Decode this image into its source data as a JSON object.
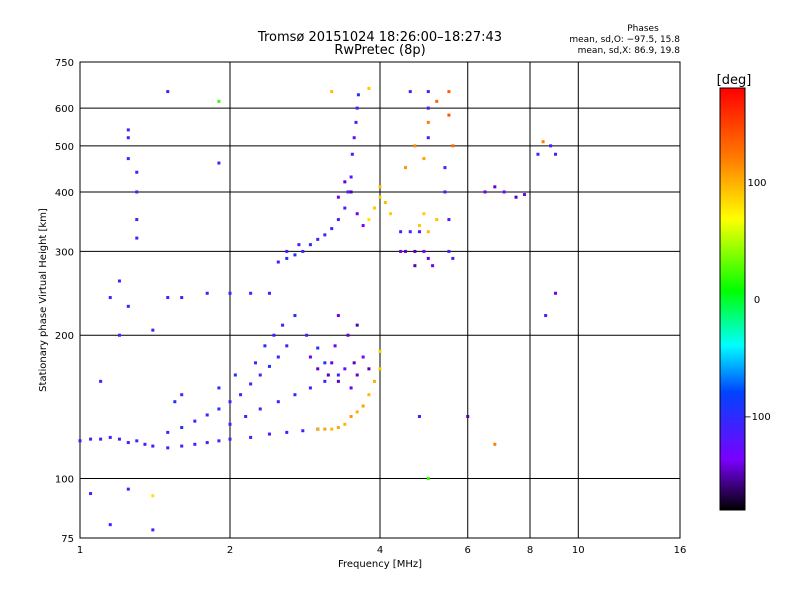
{
  "chart_data": {
    "type": "scatter",
    "title": "Tromsø 20151024 18:26:00–18:27:43",
    "subtitle": "RwPretec (8p)",
    "phases": {
      "title": "Phases",
      "line1": "mean, sd,O: −97.5, 15.8",
      "line2": "mean, sd,X:  86.9, 19.8"
    },
    "xlabel": "Frequency [MHz]",
    "ylabel": "Stationary phase Virtual Height [km]",
    "xscale": "log",
    "yscale": "log",
    "xlim": [
      1,
      16
    ],
    "ylim": [
      75,
      750
    ],
    "xticks": [
      1,
      2,
      4,
      6,
      8,
      10,
      16
    ],
    "yticks": [
      75,
      100,
      200,
      300,
      400,
      500,
      600,
      750
    ],
    "grid": true,
    "colorbar": {
      "label": "[deg]",
      "range": [
        -180,
        180
      ],
      "ticks": [
        100,
        0,
        -100
      ]
    },
    "points": [
      [
        1.0,
        120,
        -110
      ],
      [
        1.05,
        121,
        -108
      ],
      [
        1.1,
        121,
        -112
      ],
      [
        1.15,
        122,
        -105
      ],
      [
        1.2,
        121,
        -110
      ],
      [
        1.25,
        119,
        -115
      ],
      [
        1.3,
        120,
        -100
      ],
      [
        1.35,
        118,
        -112
      ],
      [
        1.4,
        117,
        -108
      ],
      [
        1.5,
        116,
        -110
      ],
      [
        1.6,
        117,
        -105
      ],
      [
        1.7,
        118,
        -108
      ],
      [
        1.8,
        119,
        -112
      ],
      [
        1.9,
        120,
        -110
      ],
      [
        2.0,
        121,
        -115
      ],
      [
        2.2,
        122,
        -112
      ],
      [
        2.4,
        124,
        -118
      ],
      [
        2.6,
        125,
        -120
      ],
      [
        2.8,
        126,
        -115
      ],
      [
        3.0,
        127,
        -118
      ],
      [
        1.5,
        125,
        -100
      ],
      [
        1.6,
        128,
        -95
      ],
      [
        1.7,
        132,
        -105
      ],
      [
        1.8,
        136,
        -110
      ],
      [
        1.9,
        140,
        -100
      ],
      [
        2.0,
        145,
        -105
      ],
      [
        2.1,
        150,
        -110
      ],
      [
        2.2,
        158,
        -100
      ],
      [
        2.3,
        165,
        -105
      ],
      [
        2.4,
        172,
        -98
      ],
      [
        2.5,
        180,
        -102
      ],
      [
        2.6,
        190,
        -108
      ],
      [
        1.9,
        155,
        -100
      ],
      [
        2.05,
        165,
        -95
      ],
      [
        2.25,
        175,
        -105
      ],
      [
        2.35,
        190,
        -100
      ],
      [
        2.45,
        200,
        -110
      ],
      [
        2.55,
        210,
        -105
      ],
      [
        2.7,
        220,
        -100
      ],
      [
        2.85,
        200,
        -108
      ],
      [
        3.0,
        188,
        -95
      ],
      [
        3.1,
        175,
        -100
      ],
      [
        2.0,
        130,
        -110
      ],
      [
        2.15,
        135,
        -112
      ],
      [
        2.3,
        140,
        -108
      ],
      [
        2.5,
        145,
        -104
      ],
      [
        2.7,
        150,
        -100
      ],
      [
        2.9,
        155,
        -106
      ],
      [
        3.1,
        160,
        -102
      ],
      [
        3.3,
        165,
        -110
      ],
      [
        2.9,
        180,
        -140
      ],
      [
        3.0,
        170,
        -145
      ],
      [
        3.15,
        165,
        -150
      ],
      [
        3.2,
        175,
        -142
      ],
      [
        3.3,
        160,
        -148
      ],
      [
        3.4,
        170,
        -135
      ],
      [
        3.5,
        155,
        -140
      ],
      [
        3.55,
        175,
        -150
      ],
      [
        3.6,
        165,
        -145
      ],
      [
        3.7,
        180,
        -138
      ],
      [
        3.8,
        170,
        -150
      ],
      [
        3.25,
        190,
        -140
      ],
      [
        3.45,
        200,
        -145
      ],
      [
        3.6,
        210,
        -150
      ],
      [
        3.3,
        220,
        -140
      ],
      [
        3.0,
        127,
        100
      ],
      [
        3.1,
        127,
        105
      ],
      [
        3.2,
        127,
        95
      ],
      [
        3.3,
        128,
        102
      ],
      [
        3.4,
        130,
        98
      ],
      [
        3.5,
        135,
        110
      ],
      [
        3.6,
        138,
        100
      ],
      [
        3.7,
        142,
        105
      ],
      [
        3.8,
        150,
        95
      ],
      [
        3.9,
        160,
        100
      ],
      [
        4.0,
        170,
        90
      ],
      [
        4.0,
        185,
        85
      ],
      [
        2.6,
        290,
        -100
      ],
      [
        2.7,
        295,
        -95
      ],
      [
        2.8,
        300,
        -105
      ],
      [
        2.9,
        310,
        -100
      ],
      [
        3.0,
        318,
        -110
      ],
      [
        3.1,
        325,
        -102
      ],
      [
        3.2,
        335,
        -108
      ],
      [
        3.3,
        350,
        -115
      ],
      [
        3.4,
        370,
        -110
      ],
      [
        3.45,
        400,
        -105
      ],
      [
        3.5,
        430,
        -120
      ],
      [
        3.52,
        480,
        -115
      ],
      [
        3.55,
        520,
        -125
      ],
      [
        3.58,
        560,
        -110
      ],
      [
        3.6,
        600,
        -105
      ],
      [
        3.62,
        640,
        -100
      ],
      [
        2.4,
        245,
        -110
      ],
      [
        2.2,
        245,
        -105
      ],
      [
        2.0,
        245,
        -100
      ],
      [
        1.8,
        245,
        -108
      ],
      [
        1.6,
        240,
        -112
      ],
      [
        1.5,
        240,
        -105
      ],
      [
        2.5,
        285,
        -115
      ],
      [
        2.6,
        300,
        -120
      ],
      [
        2.75,
        310,
        -118
      ],
      [
        3.3,
        390,
        -140
      ],
      [
        3.4,
        420,
        -145
      ],
      [
        3.5,
        400,
        -150
      ],
      [
        3.6,
        360,
        -140
      ],
      [
        3.7,
        340,
        -135
      ],
      [
        3.8,
        350,
        80
      ],
      [
        3.9,
        370,
        90
      ],
      [
        4.0,
        390,
        85
      ],
      [
        4.1,
        380,
        95
      ],
      [
        4.2,
        360,
        88
      ],
      [
        4.0,
        410,
        92
      ],
      [
        4.4,
        300,
        -140
      ],
      [
        4.5,
        300,
        -145
      ],
      [
        4.7,
        300,
        -150
      ],
      [
        4.9,
        300,
        -135
      ],
      [
        5.0,
        290,
        -140
      ],
      [
        4.4,
        330,
        -110
      ],
      [
        4.6,
        330,
        -105
      ],
      [
        4.8,
        330,
        -115
      ],
      [
        4.5,
        450,
        110
      ],
      [
        4.7,
        500,
        115
      ],
      [
        4.9,
        470,
        105
      ],
      [
        5.0,
        560,
        120
      ],
      [
        5.0,
        600,
        125
      ],
      [
        5.2,
        620,
        130
      ],
      [
        5.5,
        650,
        135
      ],
      [
        5.5,
        580,
        140
      ],
      [
        5.6,
        500,
        130
      ],
      [
        5.0,
        520,
        -105
      ],
      [
        5.0,
        600,
        -100
      ],
      [
        5.0,
        650,
        -110
      ],
      [
        5.4,
        400,
        -100
      ],
      [
        5.4,
        450,
        -105
      ],
      [
        5.5,
        350,
        -110
      ],
      [
        5.5,
        300,
        -115
      ],
      [
        5.6,
        290,
        -108
      ],
      [
        4.8,
        340,
        90
      ],
      [
        5.0,
        330,
        95
      ],
      [
        5.2,
        350,
        92
      ],
      [
        4.9,
        360,
        88
      ],
      [
        6.5,
        400,
        -140
      ],
      [
        6.8,
        410,
        -145
      ],
      [
        7.1,
        400,
        -130
      ],
      [
        7.5,
        390,
        -150
      ],
      [
        7.8,
        395,
        -140
      ],
      [
        8.3,
        480,
        -100
      ],
      [
        8.5,
        510,
        120
      ],
      [
        8.8,
        500,
        -110
      ],
      [
        9.0,
        480,
        -105
      ],
      [
        1.25,
        540,
        -110
      ],
      [
        1.25,
        520,
        -105
      ],
      [
        1.25,
        470,
        -100
      ],
      [
        1.3,
        440,
        -108
      ],
      [
        1.3,
        400,
        -100
      ],
      [
        1.3,
        350,
        -105
      ],
      [
        1.3,
        320,
        -110
      ],
      [
        1.5,
        650,
        -115
      ],
      [
        1.9,
        620,
        20
      ],
      [
        1.9,
        460,
        -110
      ],
      [
        1.2,
        260,
        -110
      ],
      [
        1.15,
        240,
        -105
      ],
      [
        1.25,
        230,
        -100
      ],
      [
        1.2,
        200,
        -108
      ],
      [
        1.4,
        205,
        -110
      ],
      [
        1.55,
        145,
        -100
      ],
      [
        1.6,
        150,
        -105
      ],
      [
        1.1,
        160,
        -108
      ],
      [
        1.05,
        93,
        -105
      ],
      [
        1.15,
        80,
        -110
      ],
      [
        1.25,
        95,
        -100
      ],
      [
        1.4,
        92,
        80
      ],
      [
        1.4,
        78,
        -105
      ],
      [
        3.2,
        650,
        95
      ],
      [
        3.8,
        660,
        90
      ],
      [
        4.6,
        650,
        -110
      ],
      [
        4.7,
        280,
        -150
      ],
      [
        5.1,
        280,
        -140
      ],
      [
        9.0,
        245,
        -140
      ],
      [
        8.6,
        220,
        -110
      ],
      [
        6.0,
        135,
        -150
      ],
      [
        4.8,
        135,
        -110
      ],
      [
        5.0,
        100,
        20
      ],
      [
        6.8,
        118,
        120
      ]
    ]
  }
}
